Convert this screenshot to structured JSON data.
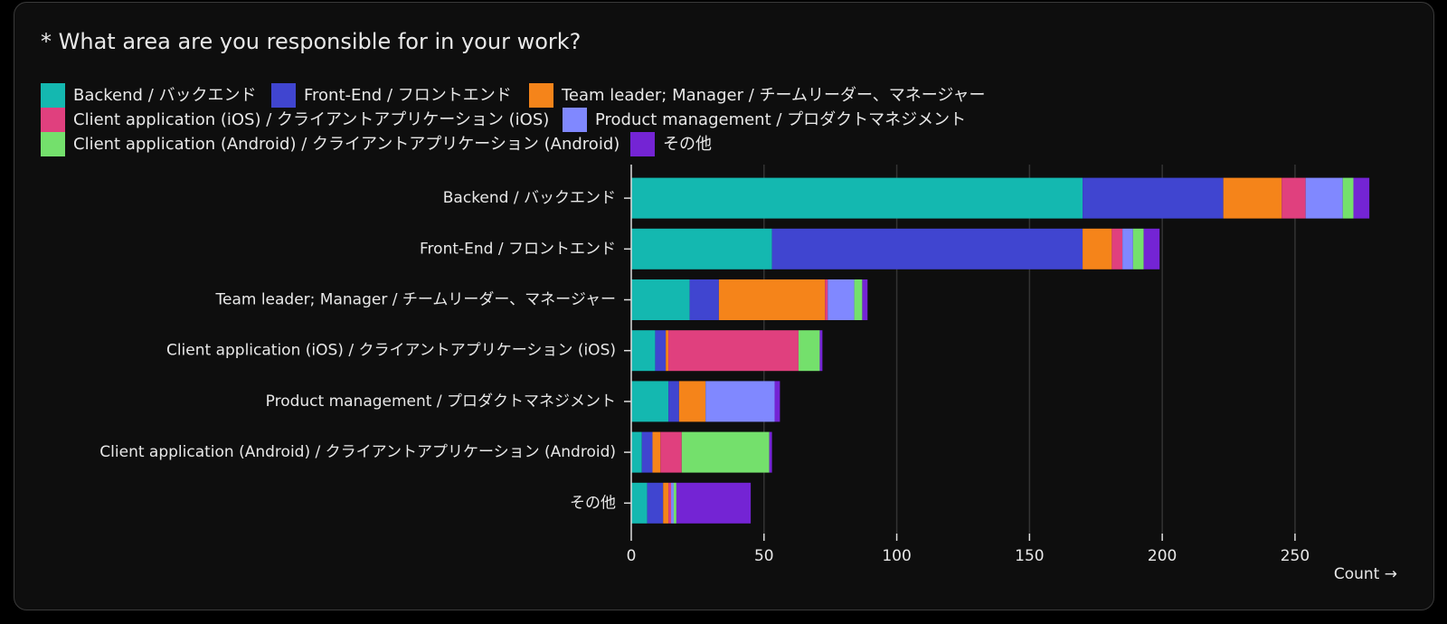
{
  "chart_data": {
    "type": "bar",
    "orientation": "horizontal",
    "stacked": true,
    "title": "* What area are you responsible for in your work?",
    "x_label": "Count →",
    "categories": [
      "Backend / バックエンド",
      "Front-End / フロントエンド",
      "Team leader; Manager / チームリーダー、マネージャー",
      "Client application (iOS) / クライアントアプリケーション (iOS)",
      "Product management / プロダクトマネジメント",
      "Client application (Android) / クライアントアプリケーション (Android)",
      "その他"
    ],
    "series": [
      {
        "name": "Backend / バックエンド",
        "color": "#14b8b0",
        "values": [
          170,
          53,
          22,
          9,
          14,
          4,
          6
        ]
      },
      {
        "name": "Front-End / フロントエンド",
        "color": "#4045d0",
        "values": [
          53,
          117,
          11,
          4,
          4,
          4,
          6
        ]
      },
      {
        "name": "Team leader; Manager / チームリーダー、マネージャー",
        "color": "#f5841a",
        "values": [
          22,
          11,
          40,
          1,
          10,
          3,
          2
        ]
      },
      {
        "name": "Client application (iOS) / クライアントアプリケーション (iOS)",
        "color": "#e0407e",
        "values": [
          9,
          4,
          1,
          49,
          0,
          8,
          1
        ]
      },
      {
        "name": "Product management / プロダクトマネジメント",
        "color": "#8088ff",
        "values": [
          14,
          4,
          10,
          0,
          26,
          0,
          1
        ]
      },
      {
        "name": "Client application (Android) / クライアントアプリケーション (Android)",
        "color": "#74e06c",
        "values": [
          4,
          4,
          3,
          8,
          0,
          33,
          1
        ]
      },
      {
        "name": "その他",
        "color": "#7424d4",
        "values": [
          6,
          6,
          2,
          1,
          2,
          1,
          28
        ]
      }
    ],
    "xlim": [
      0,
      280
    ],
    "xticks": [
      0,
      50,
      100,
      150,
      200,
      250
    ],
    "grid": true
  }
}
